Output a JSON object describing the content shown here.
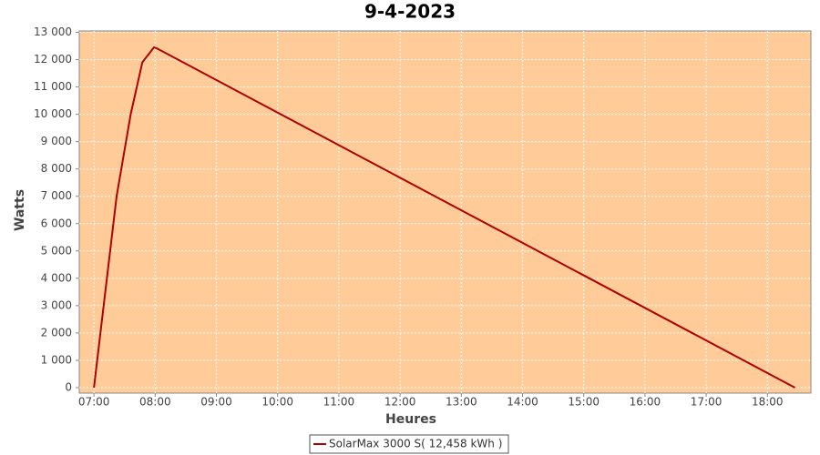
{
  "chart_data": {
    "type": "line",
    "title": "9-4-2023",
    "x_label": "Heures",
    "y_label": "Watts",
    "x": [
      7.0,
      7.37,
      7.6,
      7.79,
      7.98,
      8.02,
      18.45
    ],
    "series": [
      {
        "name": "SolarMax 3000 S( 12,458 kWh )",
        "color": "#b00000",
        "values": [
          0,
          7000,
          10000,
          11900,
          12450,
          12420,
          0
        ]
      }
    ],
    "xlim": [
      6.76,
      18.71
    ],
    "xticks": [
      {
        "value": 7,
        "label": "07:00"
      },
      {
        "value": 8,
        "label": "08:00"
      },
      {
        "value": 9,
        "label": "09:00"
      },
      {
        "value": 10,
        "label": "10:00"
      },
      {
        "value": 11,
        "label": "11:00"
      },
      {
        "value": 12,
        "label": "12:00"
      },
      {
        "value": 13,
        "label": "13:00"
      },
      {
        "value": 14,
        "label": "14:00"
      },
      {
        "value": 15,
        "label": "15:00"
      },
      {
        "value": 16,
        "label": "16:00"
      },
      {
        "value": 17,
        "label": "17:00"
      },
      {
        "value": 18,
        "label": "18:00"
      }
    ],
    "ylim": [
      -200,
      13050
    ],
    "yticks": [
      0,
      {
        "value": 1000,
        "label": "1 000"
      },
      {
        "value": 2000,
        "label": "2 000"
      },
      {
        "value": 3000,
        "label": "3 000"
      },
      {
        "value": 4000,
        "label": "4 000"
      },
      {
        "value": 5000,
        "label": "5 000"
      },
      {
        "value": 6000,
        "label": "6 000"
      },
      {
        "value": 7000,
        "label": "7 000"
      },
      {
        "value": 8000,
        "label": "8 000"
      },
      {
        "value": 9000,
        "label": "9 000"
      },
      {
        "value": 10000,
        "label": "10 000"
      },
      {
        "value": 11000,
        "label": "11 000"
      },
      {
        "value": 12000,
        "label": "12 000"
      },
      {
        "value": 13000,
        "label": "13 000"
      }
    ],
    "grid": true,
    "background": "#ffcc99",
    "legend": "bottom"
  }
}
